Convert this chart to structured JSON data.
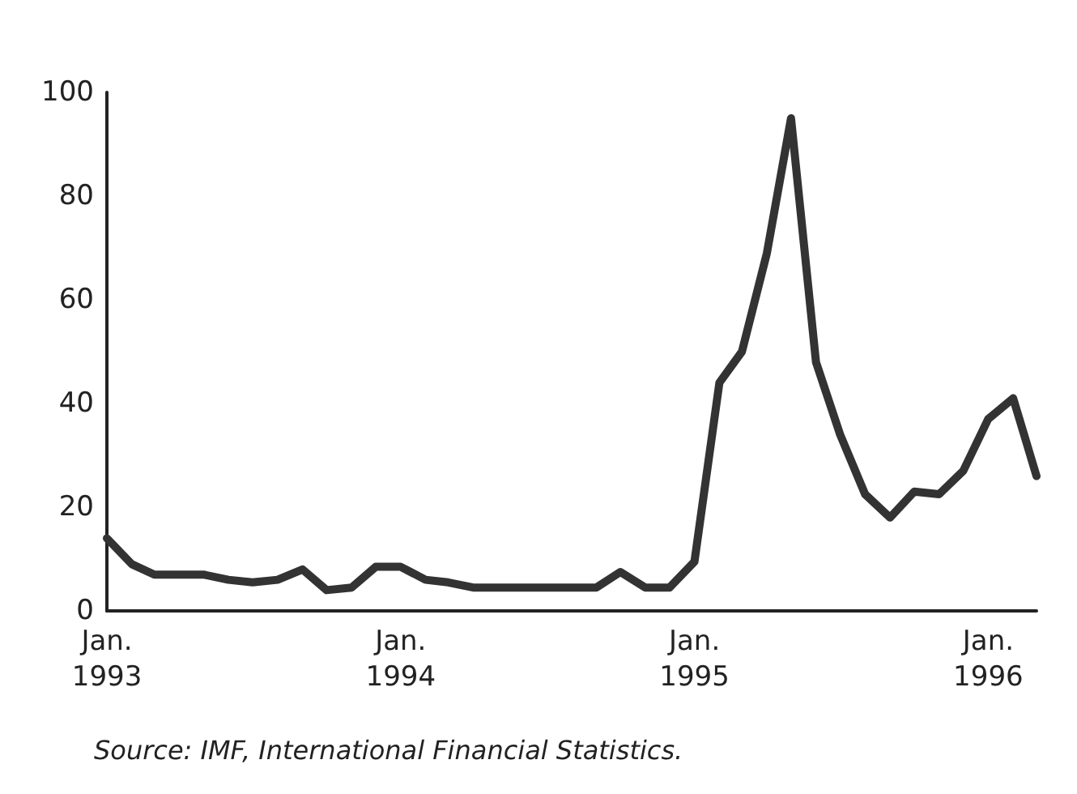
{
  "chart_data": {
    "type": "line",
    "x": [
      "1993-01",
      "1993-02",
      "1993-03",
      "1993-04",
      "1993-05",
      "1993-06",
      "1993-07",
      "1993-08",
      "1993-09",
      "1993-10",
      "1993-11",
      "1993-12",
      "1994-01",
      "1994-02",
      "1994-03",
      "1994-04",
      "1994-05",
      "1994-06",
      "1994-07",
      "1994-08",
      "1994-09",
      "1994-10",
      "1994-11",
      "1994-12",
      "1995-01",
      "1995-02",
      "1995-03",
      "1995-04",
      "1995-05",
      "1995-06",
      "1995-07",
      "1995-08",
      "1995-09",
      "1995-10",
      "1995-11",
      "1995-12",
      "1996-01",
      "1996-02",
      "1996-03"
    ],
    "series": [
      {
        "color": "#333333",
        "values": [
          14,
          9,
          7,
          7,
          7,
          6,
          5.5,
          6,
          8,
          4,
          4.5,
          8.5,
          8.5,
          6,
          5.5,
          4.5,
          4.5,
          4.5,
          4.5,
          4.5,
          4.5,
          7.5,
          4.5,
          4.5,
          9.5,
          44,
          50,
          69,
          95,
          48,
          34,
          22.5,
          18,
          23,
          22.5,
          27,
          37,
          41,
          26
        ]
      }
    ],
    "xlim": [
      "1993-01",
      "1996-03"
    ],
    "xticks": [
      {
        "value": "1993-01",
        "label": "Jan.\n1993"
      },
      {
        "value": "1994-01",
        "label": "Jan.\n1994"
      },
      {
        "value": "1995-01",
        "label": "Jan.\n1995"
      },
      {
        "value": "1996-01",
        "label": "Jan.\n1996"
      }
    ],
    "ylim": [
      0,
      100
    ],
    "yticks": [
      0,
      20,
      40,
      60,
      80,
      100
    ],
    "grid": false,
    "marker": "none",
    "line_style": "solid",
    "annotations": [
      "Source: IMF, International Financial Statistics."
    ]
  }
}
